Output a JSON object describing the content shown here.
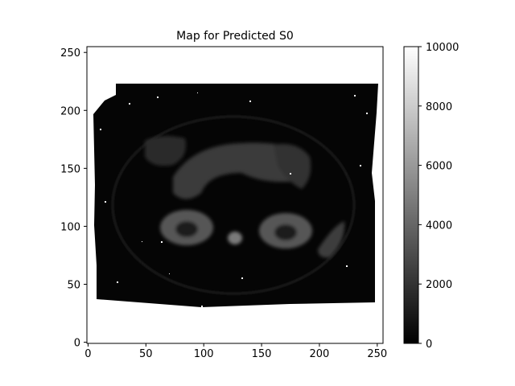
{
  "chart_data": {
    "type": "heatmap",
    "title": "Map for Predicted S0",
    "xlabel": "",
    "ylabel": "",
    "xlim": [
      -1,
      255
    ],
    "ylim": [
      -1,
      255
    ],
    "x_ticks": [
      0,
      50,
      100,
      150,
      200,
      250
    ],
    "y_ticks": [
      0,
      50,
      100,
      150,
      200,
      250
    ],
    "colormap": "gray",
    "colorbar": {
      "vmin": 0,
      "vmax": 10000,
      "ticks": [
        0,
        2000,
        4000,
        6000,
        8000,
        10000
      ]
    },
    "grid": false,
    "description_values": {
      "background_outside_body": "white (no data)",
      "body_region_value_approx": 300,
      "organ_region_value_approx": 2500
    }
  }
}
